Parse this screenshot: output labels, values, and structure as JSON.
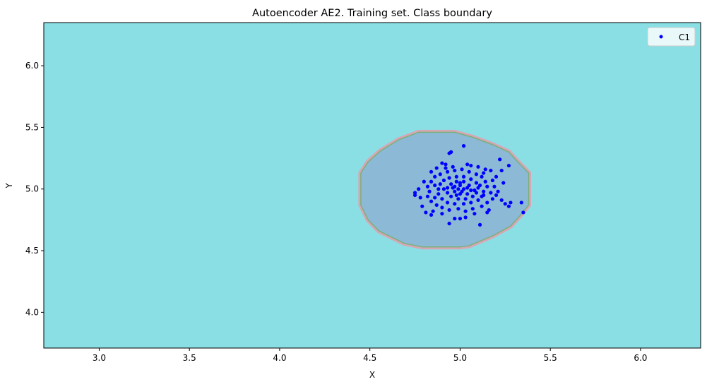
{
  "chart_data": {
    "type": "scatter",
    "title": "Autoencoder AE2. Training set. Class boundary",
    "xlabel": "X",
    "ylabel": "Y",
    "xlim": [
      2.693,
      6.333
    ],
    "ylim": [
      3.71,
      6.35
    ],
    "xticks": [
      "3.0",
      "3.5",
      "4.0",
      "4.5",
      "5.0",
      "5.5",
      "6.0"
    ],
    "yticks": [
      "4.0",
      "4.5",
      "5.0",
      "5.5",
      "6.0"
    ],
    "grid": false,
    "legend": {
      "position": "top-right",
      "entries": [
        "C1"
      ]
    },
    "colors": {
      "background_region": "#8adfe5",
      "inner_region": "#8bb9d6",
      "boundary_outer": "#e0a0b0",
      "boundary_inner": "#7ab07a",
      "points": "#0000ff"
    },
    "boundary": [
      [
        4.45,
        4.87
      ],
      [
        4.45,
        5.13
      ],
      [
        4.49,
        5.22
      ],
      [
        4.56,
        5.31
      ],
      [
        4.66,
        5.4
      ],
      [
        4.77,
        5.46
      ],
      [
        4.97,
        5.46
      ],
      [
        5.07,
        5.42
      ],
      [
        5.18,
        5.36
      ],
      [
        5.27,
        5.3
      ],
      [
        5.32,
        5.22
      ],
      [
        5.38,
        5.13
      ],
      [
        5.38,
        4.87
      ],
      [
        5.33,
        4.78
      ],
      [
        5.28,
        4.7
      ],
      [
        5.18,
        4.62
      ],
      [
        5.05,
        4.54
      ],
      [
        5.0,
        4.53
      ],
      [
        4.79,
        4.53
      ],
      [
        4.69,
        4.56
      ],
      [
        4.55,
        4.66
      ],
      [
        4.49,
        4.75
      ]
    ],
    "series": [
      {
        "name": "C1",
        "points": [
          [
            5.35,
            4.81
          ],
          [
            5.34,
            4.89
          ],
          [
            5.02,
            5.35
          ],
          [
            5.27,
            5.19
          ],
          [
            4.75,
            4.97
          ],
          [
            4.75,
            4.95
          ],
          [
            4.94,
            4.72
          ],
          [
            5.11,
            4.71
          ],
          [
            5.22,
            5.24
          ],
          [
            4.94,
            5.29
          ],
          [
            4.95,
            5.3
          ],
          [
            5.23,
            5.15
          ],
          [
            5.2,
            5.1
          ],
          [
            5.24,
            5.05
          ],
          [
            5.25,
            4.88
          ],
          [
            5.27,
            4.86
          ],
          [
            5.23,
            4.91
          ],
          [
            4.79,
            4.86
          ],
          [
            4.81,
            4.81
          ],
          [
            4.85,
            4.82
          ],
          [
            4.84,
            4.79
          ],
          [
            4.97,
            4.76
          ],
          [
            5.0,
            4.76
          ],
          [
            5.03,
            4.77
          ],
          [
            5.16,
            4.83
          ],
          [
            5.15,
            4.81
          ],
          [
            4.8,
            5.06
          ],
          [
            4.84,
            5.14
          ],
          [
            4.87,
            5.17
          ],
          [
            4.9,
            5.21
          ],
          [
            4.92,
            5.2
          ],
          [
            5.04,
            5.2
          ],
          [
            5.1,
            5.18
          ],
          [
            5.14,
            5.16
          ],
          [
            5.17,
            5.15
          ],
          [
            5.18,
            5.07
          ],
          [
            5.19,
            5.02
          ],
          [
            5.17,
            4.97
          ],
          [
            5.18,
            4.92
          ],
          [
            5.15,
            4.89
          ],
          [
            5.12,
            4.86
          ],
          [
            5.07,
            4.84
          ],
          [
            5.03,
            4.82
          ],
          [
            4.99,
            4.84
          ],
          [
            4.94,
            4.83
          ],
          [
            4.9,
            4.85
          ],
          [
            4.87,
            4.87
          ],
          [
            4.84,
            4.9
          ],
          [
            4.82,
            4.94
          ],
          [
            4.83,
            4.98
          ],
          [
            4.82,
            5.02
          ],
          [
            4.84,
            5.06
          ],
          [
            4.86,
            5.1
          ],
          [
            4.89,
            5.12
          ],
          [
            4.93,
            5.14
          ],
          [
            4.97,
            5.15
          ],
          [
            5.01,
            5.16
          ],
          [
            5.05,
            5.14
          ],
          [
            5.09,
            5.12
          ],
          [
            5.12,
            5.1
          ],
          [
            5.14,
            5.06
          ],
          [
            5.15,
            5.02
          ],
          [
            5.13,
            4.98
          ],
          [
            5.12,
            4.94
          ],
          [
            5.1,
            4.91
          ],
          [
            5.06,
            4.89
          ],
          [
            5.02,
            4.88
          ],
          [
            4.97,
            4.88
          ],
          [
            4.93,
            4.89
          ],
          [
            4.9,
            4.92
          ],
          [
            4.88,
            4.96
          ],
          [
            4.88,
            5.0
          ],
          [
            4.89,
            5.04
          ],
          [
            4.91,
            5.07
          ],
          [
            4.94,
            5.09
          ],
          [
            4.98,
            5.1
          ],
          [
            5.02,
            5.1
          ],
          [
            5.06,
            5.08
          ],
          [
            5.09,
            5.05
          ],
          [
            5.1,
            5.01
          ],
          [
            5.09,
            4.97
          ],
          [
            5.07,
            4.94
          ],
          [
            5.03,
            4.92
          ],
          [
            4.99,
            4.92
          ],
          [
            4.95,
            4.94
          ],
          [
            4.93,
            4.97
          ],
          [
            4.93,
            5.01
          ],
          [
            4.95,
            5.04
          ],
          [
            4.98,
            5.06
          ],
          [
            5.02,
            5.06
          ],
          [
            5.05,
            5.03
          ],
          [
            5.06,
            4.99
          ],
          [
            5.04,
            4.96
          ],
          [
            5.0,
            4.96
          ],
          [
            4.97,
            4.98
          ],
          [
            4.97,
            5.02
          ],
          [
            5.0,
            5.03
          ],
          [
            5.02,
            5.0
          ],
          [
            4.99,
            5.0
          ],
          [
            5.01,
            4.98
          ],
          [
            4.96,
            5.01
          ],
          [
            5.04,
            5.01
          ],
          [
            5.0,
            5.05
          ],
          [
            4.98,
            4.95
          ],
          [
            4.91,
            5.0
          ],
          [
            5.08,
            4.99
          ],
          [
            4.86,
            4.93
          ],
          [
            4.86,
            5.03
          ],
          [
            5.11,
            5.03
          ],
          [
            5.13,
            4.95
          ],
          [
            4.77,
            5.0
          ],
          [
            4.78,
            4.93
          ],
          [
            4.9,
            4.8
          ],
          [
            5.08,
            4.8
          ],
          [
            5.21,
            4.98
          ],
          [
            5.2,
            4.95
          ],
          [
            5.28,
            4.89
          ],
          [
            4.92,
            5.17
          ],
          [
            5.06,
            5.19
          ],
          [
            4.96,
            5.18
          ],
          [
            5.13,
            5.13
          ]
        ]
      }
    ]
  }
}
